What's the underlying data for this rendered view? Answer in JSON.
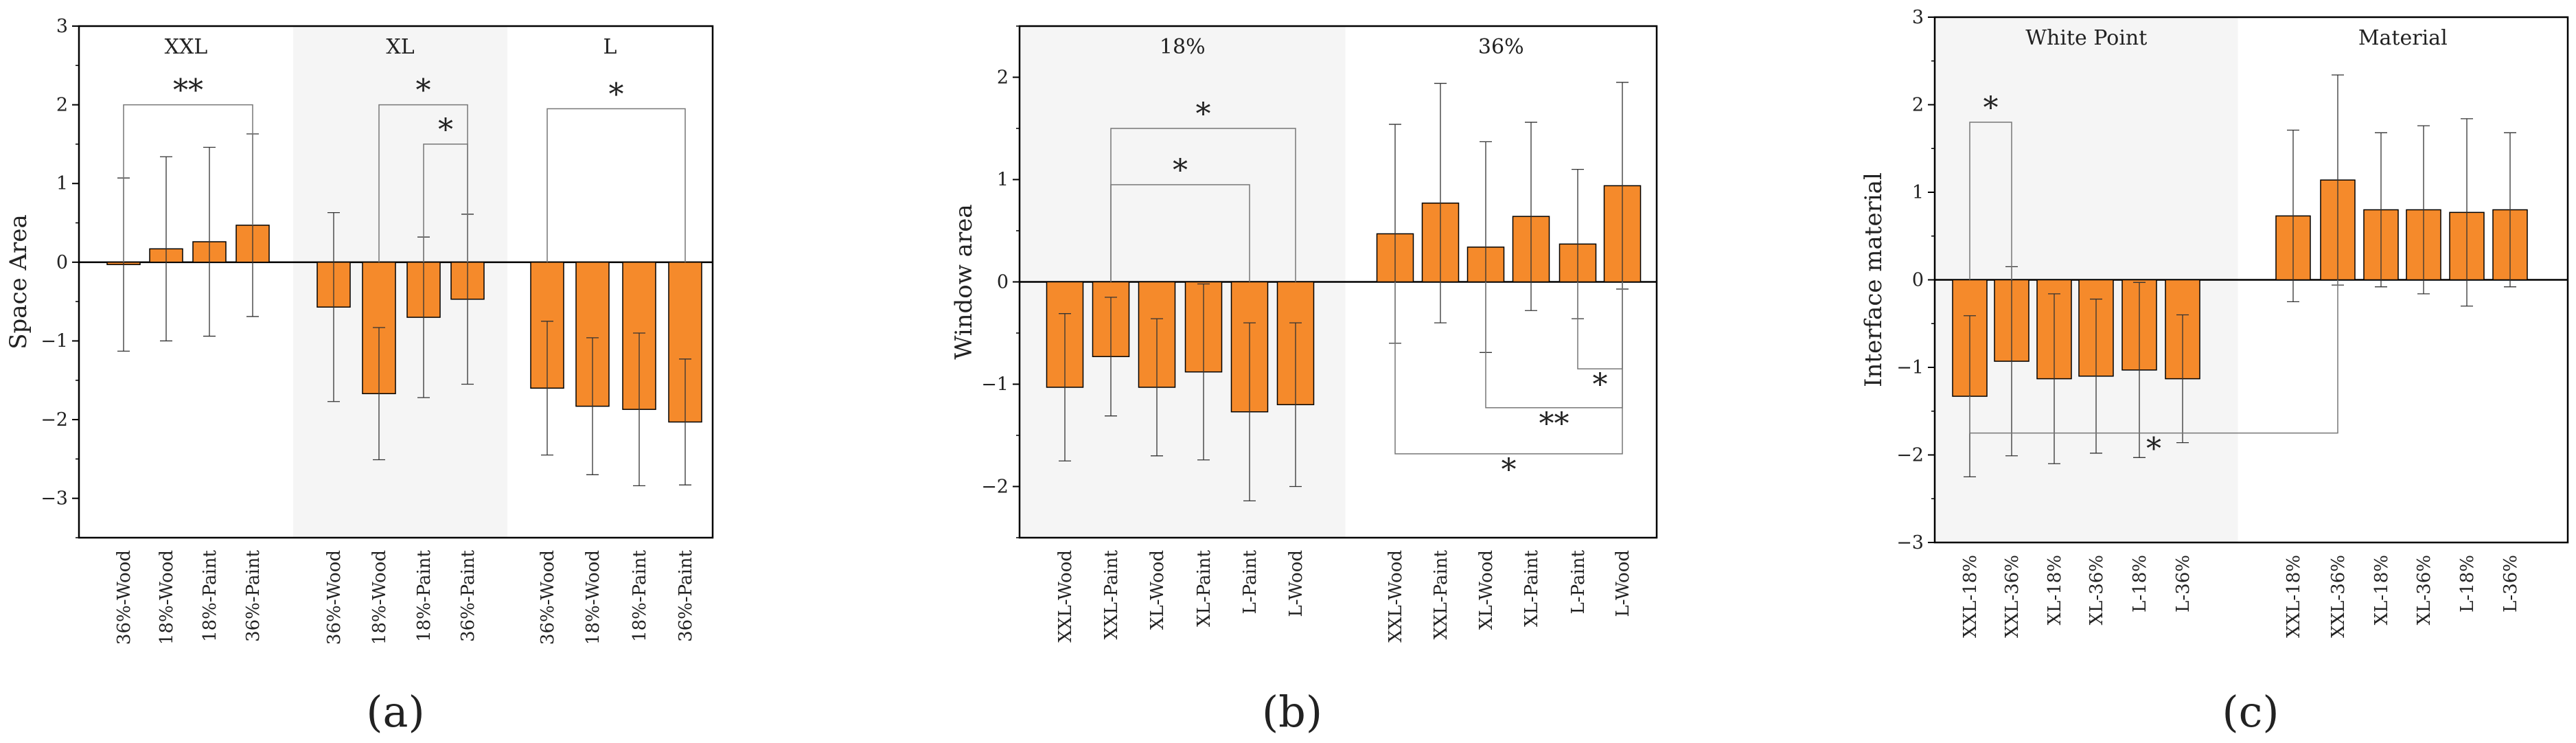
{
  "chart_data": [
    {
      "type": "bar",
      "panel_label": "(a)",
      "ylabel": "Space Area",
      "ylim": [
        -3.5,
        3
      ],
      "yticks": [
        3,
        2,
        1,
        0,
        -1,
        -2,
        -3
      ],
      "groups": [
        {
          "label": "XXL",
          "shaded": false,
          "categories": [
            "36%-Wood",
            "18%-Wood",
            "18%-Paint",
            "36%-Paint"
          ],
          "values": [
            -0.03,
            0.17,
            0.26,
            0.47
          ],
          "errors": [
            1.1,
            1.17,
            1.2,
            1.16
          ]
        },
        {
          "label": "XL",
          "shaded": true,
          "categories": [
            "36%-Wood",
            "18%-Wood",
            "18%-Paint",
            "36%-Paint"
          ],
          "values": [
            -0.57,
            -1.67,
            -0.7,
            -0.47
          ],
          "errors": [
            1.2,
            0.84,
            1.02,
            1.08
          ]
        },
        {
          "label": "L",
          "shaded": false,
          "categories": [
            "36%-Wood",
            "18%-Wood",
            "18%-Paint",
            "36%-Paint"
          ],
          "values": [
            -1.6,
            -1.83,
            -1.87,
            -2.03
          ],
          "errors": [
            0.85,
            0.87,
            0.97,
            0.8
          ]
        }
      ],
      "significance": [
        {
          "from": 0,
          "to": 3,
          "side": "top",
          "level": 2,
          "label": "**"
        },
        {
          "from": 5,
          "to": 7,
          "side": "top",
          "level": 2,
          "label": "*"
        },
        {
          "from": 6,
          "to": 7,
          "side": "top",
          "level": 1.5,
          "label": "*"
        },
        {
          "from": 8,
          "to": 11,
          "side": "top",
          "level": 1.95,
          "label": "*"
        }
      ]
    },
    {
      "type": "bar",
      "panel_label": "(b)",
      "ylabel": "Window area",
      "ylim": [
        -2.5,
        2.5
      ],
      "yticks": [
        2,
        1,
        0,
        -1,
        -2
      ],
      "groups": [
        {
          "label": "18%",
          "shaded": true,
          "categories": [
            "XXL-Wood",
            "XXL-Paint",
            "XL-Wood",
            "XL-Paint",
            "L-Paint",
            "L-Wood"
          ],
          "values": [
            -1.03,
            -0.73,
            -1.03,
            -0.88,
            -1.27,
            -1.2
          ],
          "errors": [
            0.72,
            0.58,
            0.67,
            0.86,
            0.87,
            0.8
          ]
        },
        {
          "label": "36%",
          "shaded": false,
          "categories": [
            "XXL-Wood",
            "XXL-Paint",
            "XL-Wood",
            "XL-Paint",
            "L-Paint",
            "L-Wood"
          ],
          "values": [
            0.47,
            0.77,
            0.34,
            0.64,
            0.37,
            0.94
          ],
          "errors": [
            1.07,
            1.17,
            1.03,
            0.92,
            0.73,
            1.01
          ]
        }
      ],
      "significance": [
        {
          "from": 1,
          "to": 5,
          "side": "top",
          "level": 1.5,
          "label": "*"
        },
        {
          "from": 1,
          "to": 4,
          "side": "top",
          "level": 0.95,
          "label": "*"
        },
        {
          "from": 10,
          "to": 11,
          "side": "bottom",
          "level": -0.85,
          "label": "*"
        },
        {
          "from": 8,
          "to": 11,
          "side": "bottom",
          "level": -1.23,
          "label": "**"
        },
        {
          "from": 6,
          "to": 11,
          "side": "bottom",
          "level": -1.68,
          "label": "*"
        }
      ]
    },
    {
      "type": "bar",
      "panel_label": "(c)",
      "ylabel": "Interface material",
      "ylim": [
        -3,
        3
      ],
      "yticks": [
        3,
        2,
        1,
        0,
        -1,
        -2,
        -3
      ],
      "groups": [
        {
          "label": "White Point",
          "shaded": true,
          "categories": [
            "XXL-18%",
            "XXL-36%",
            "XL-18%",
            "XL-36%",
            "L-18%",
            "L-36%"
          ],
          "values": [
            -1.33,
            -0.93,
            -1.13,
            -1.1,
            -1.03,
            -1.13
          ],
          "errors": [
            0.92,
            1.08,
            0.97,
            0.88,
            1.0,
            0.73
          ]
        },
        {
          "label": "Material",
          "shaded": false,
          "categories": [
            "XXL-18%",
            "XXL-36%",
            "XL-18%",
            "XL-36%",
            "L-18%",
            "L-36%"
          ],
          "values": [
            0.73,
            1.14,
            0.8,
            0.8,
            0.77,
            0.8
          ],
          "errors": [
            0.98,
            1.2,
            0.88,
            0.96,
            1.07,
            0.88
          ]
        }
      ],
      "significance": [
        {
          "from": 0,
          "to": 1,
          "side": "top",
          "level": 1.8,
          "label": "*"
        },
        {
          "from": 0,
          "to": 7,
          "side": "bottom",
          "level": -1.75,
          "label": "*"
        }
      ]
    }
  ]
}
